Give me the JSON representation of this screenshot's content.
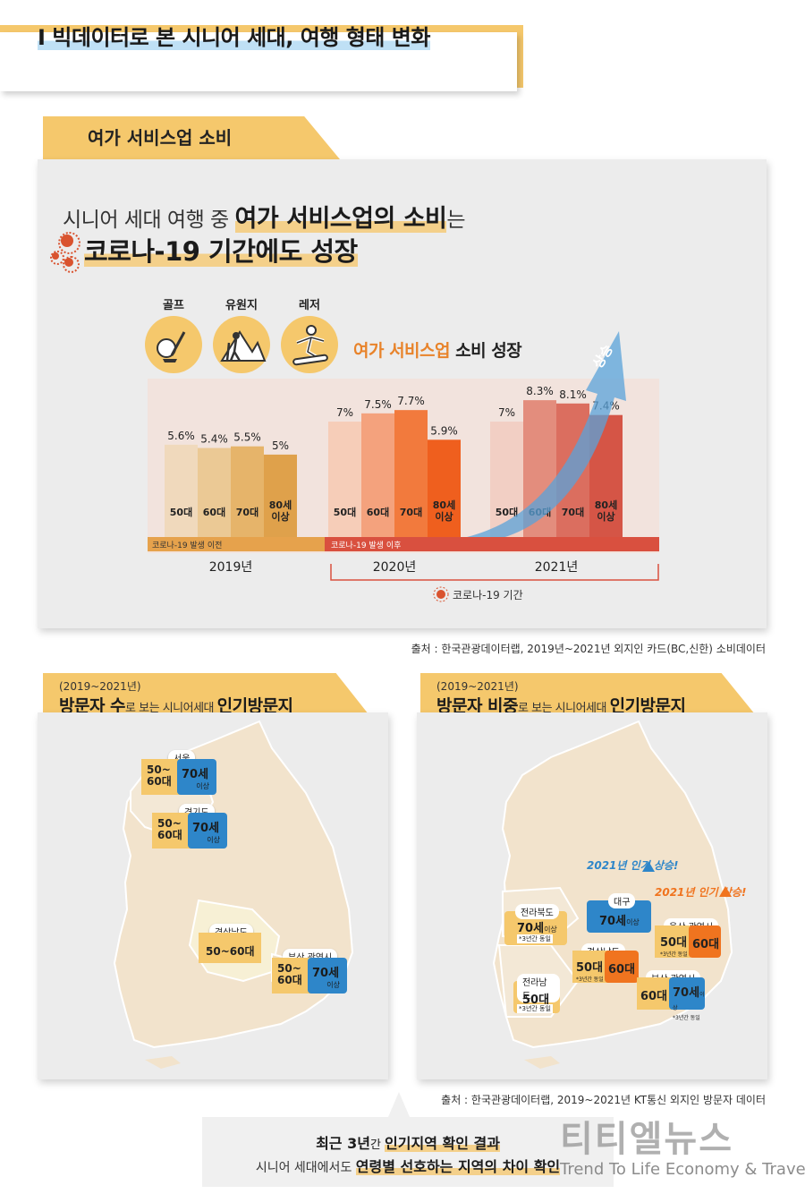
{
  "header": {
    "title": "I 빅데이터로 본 시니어 세대, 여행 형태 변화"
  },
  "section1": {
    "tab": "여가 서비스업 소비",
    "headline_prefix": "시니어 세대 여행 중 ",
    "headline_emph": "여가 서비스업의 소비",
    "headline_suffix": "는",
    "headline2": "코로나-19 기간에도 성장",
    "activities": [
      "골프",
      "유원지",
      "레저"
    ],
    "growth_label_orange": "여가 서비스업",
    "growth_label_black": " 소비 성장",
    "arrow_label": "상승",
    "pre_covid_label": "코로나-19 발생 이전",
    "post_covid_label": "코로나-19 발생 이후",
    "covid_period_label": "코로나-19 기간",
    "source": "출처 : 한국관광데이터랩, 2019년~2021년 외지인 카드(BC,신한) 소비데이터"
  },
  "chart_data": {
    "type": "bar",
    "title": "여가 서비스업 소비 성장",
    "categories": [
      "50대",
      "60대",
      "70대",
      "80세 이상"
    ],
    "series": [
      {
        "name": "2019년",
        "values": [
          5.6,
          5.4,
          5.5,
          5.0
        ],
        "labels": [
          "5.6%",
          "5.4%",
          "5.5%",
          "5%"
        ],
        "colors": [
          "#f0d9bc",
          "#ebc995",
          "#e6b46a",
          "#dfa14b"
        ]
      },
      {
        "name": "2020년",
        "values": [
          7.0,
          7.5,
          7.7,
          5.9
        ],
        "labels": [
          "7%",
          "7.5%",
          "7.7%",
          "5.9%"
        ],
        "colors": [
          "#f6cdb8",
          "#f4a27d",
          "#f27a3d",
          "#ef5f1e"
        ]
      },
      {
        "name": "2021년",
        "values": [
          7.0,
          8.3,
          8.1,
          7.4
        ],
        "labels": [
          "7%",
          "8.3%",
          "8.1%",
          "7.4%"
        ],
        "colors": [
          "#f2cfc4",
          "#e38d7d",
          "#db6e5f",
          "#d55546"
        ]
      }
    ],
    "ylim": [
      0,
      9.5
    ],
    "xlabel": "",
    "ylabel": ""
  },
  "section2": {
    "left": {
      "year": "(2019~2021년)",
      "title_bold": "방문자 수",
      "title_small": "로 보는 시니어세대 ",
      "title_bold2": "인기방문지",
      "pins": [
        {
          "region": "서울",
          "age1": "50~\n60대",
          "age2": "70세",
          "age2_sub": "이상"
        },
        {
          "region": "경기도",
          "age1": "50~\n60대",
          "age2": "70세",
          "age2_sub": "이상"
        },
        {
          "region": "경상남도",
          "age1": "50~60대"
        },
        {
          "region": "부산 광역시",
          "age1": "50~\n60대",
          "age2": "70세",
          "age2_sub": "이상"
        }
      ]
    },
    "right": {
      "year": "(2019~2021년)",
      "title_bold": "방문자 비중",
      "title_small": "로 보는 시니어세대 ",
      "title_bold2": "인기방문지",
      "callout_blue": "2021년 인기 상승!",
      "callout_orange": "2021년 인기 상승!",
      "pins": [
        {
          "region": "대구",
          "age1": "70세",
          "age1_sub": "이상"
        },
        {
          "region": "전라북도",
          "age1": "70세",
          "age1_sub": "이상",
          "note": "*3년간 동일"
        },
        {
          "region": "울산 광역시",
          "age1": "50대",
          "age2": "60대",
          "note": "*3년간 동일"
        },
        {
          "region": "경상남도",
          "age1": "50대",
          "age2": "60대",
          "note": "*3년간 동일"
        },
        {
          "region": "부산 광역시",
          "age1": "60대",
          "age2": "70세",
          "age2_sub": "이상",
          "note": "*3년간 동일"
        },
        {
          "region": "전라남도",
          "age1": "50대",
          "note": "*3년간 동일"
        }
      ]
    },
    "source": "출처 : 한국관광데이터랩, 2019~2021년 KT통신 외지인 방문자 데이터"
  },
  "summary": {
    "l1_a": "최근 3년",
    "l1_b": "간 ",
    "l1_c": "인기지역 확인 결과",
    "l2_a": "시니어 세대에서도 ",
    "l2_b": "연령별 선호하는 지역의 차이 확인"
  },
  "watermark": {
    "main": "티티엘뉴스",
    "sub": "Trend To Life Economy & Travel"
  },
  "colors": {
    "yellow": "#f5c86c",
    "blue": "#2e86c9",
    "orange": "#f0741f",
    "red": "#d9532f",
    "panel": "#ececec"
  }
}
